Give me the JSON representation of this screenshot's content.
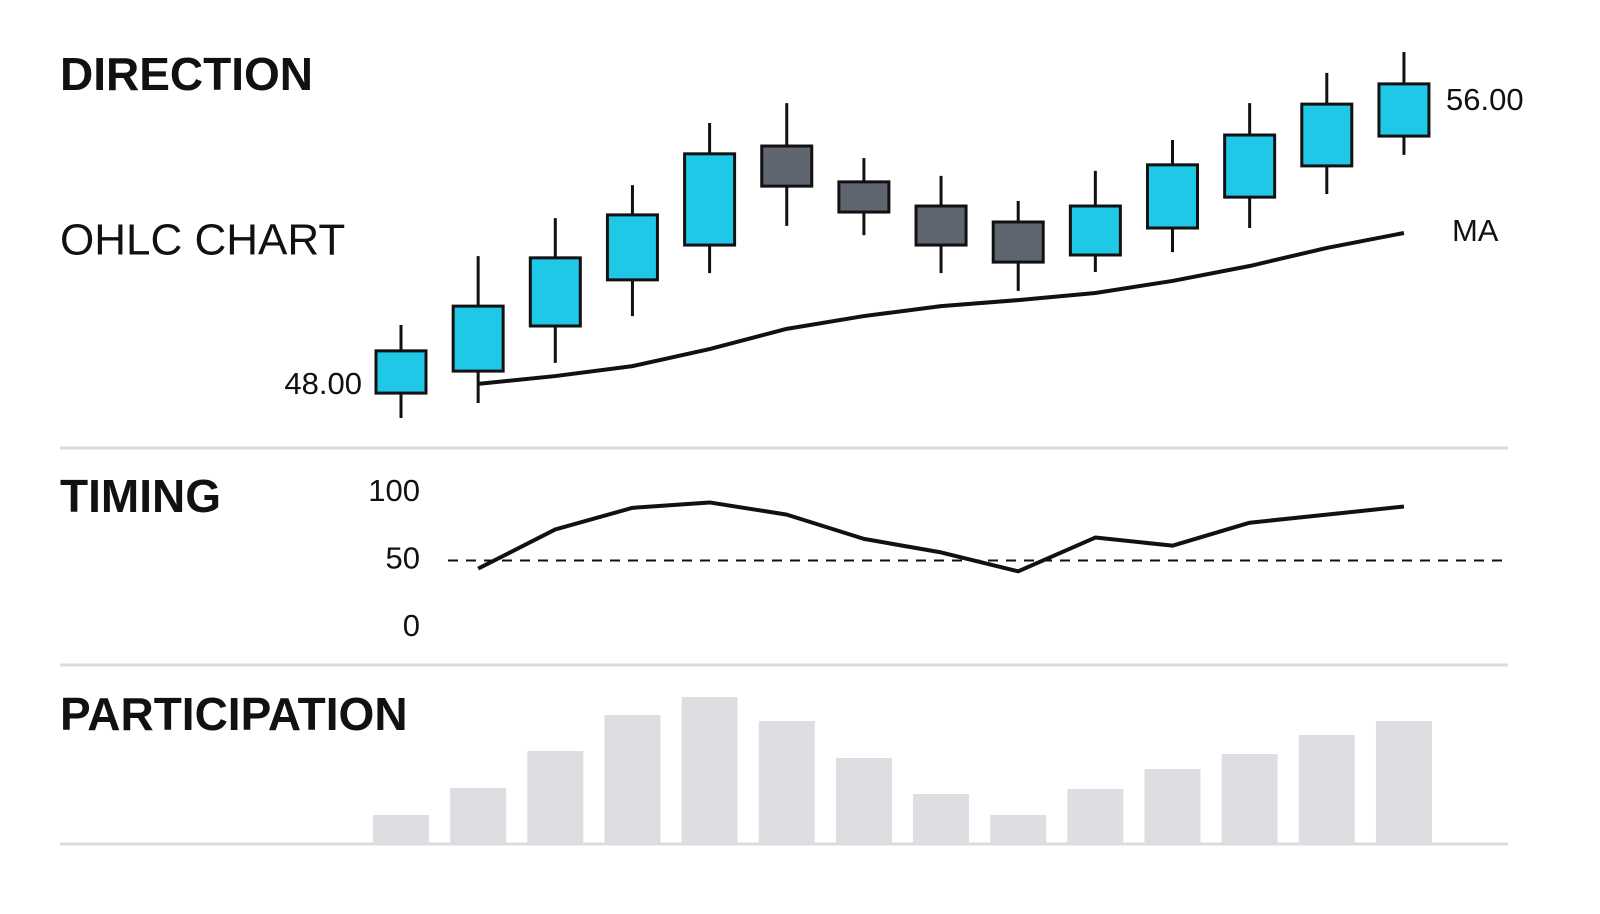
{
  "chart_data": [
    {
      "type": "candlestick",
      "title": "DIRECTION",
      "subtitle": "OHLC CHART",
      "categories": [
        null,
        null,
        null,
        null,
        null,
        null,
        null,
        null,
        null,
        null,
        null,
        null,
        null,
        null
      ],
      "open": [
        47.8,
        48.42,
        49.69,
        50.99,
        51.97,
        54.76,
        53.75,
        53.07,
        52.62,
        51.69,
        52.45,
        53.32,
        54.2,
        55.04
      ],
      "high": [
        49.72,
        51.66,
        52.73,
        53.66,
        55.41,
        55.97,
        54.42,
        53.92,
        53.21,
        54.06,
        54.93,
        55.97,
        56.82,
        57.41
      ],
      "low": [
        47.1,
        47.52,
        48.65,
        49.97,
        51.18,
        52.51,
        52.25,
        51.18,
        50.68,
        51.21,
        51.77,
        52.45,
        53.41,
        54.51
      ],
      "close": [
        48.99,
        50.25,
        51.61,
        52.82,
        54.54,
        53.63,
        52.9,
        51.97,
        51.49,
        53.07,
        54.23,
        55.07,
        55.94,
        56.51
      ],
      "up_color": "#1ec8e6",
      "down_color": "#5f6670",
      "series": [
        {
          "name": "MA",
          "color": "#111111",
          "values": [
            null,
            48.06,
            48.28,
            48.56,
            49.04,
            49.61,
            49.97,
            50.25,
            50.42,
            50.62,
            50.96,
            51.38,
            51.89,
            52.31
          ]
        }
      ],
      "ylim": [
        47,
        58
      ],
      "yticks": [
        {
          "value": 48,
          "label": "48.00"
        },
        {
          "value": 56,
          "label": "56.00"
        }
      ]
    },
    {
      "type": "line",
      "title": "TIMING",
      "categories": [
        null,
        null,
        null,
        null,
        null,
        null,
        null,
        null,
        null,
        null,
        null,
        null,
        null,
        null
      ],
      "values": [
        null,
        44,
        73,
        89,
        93,
        84,
        66,
        56,
        42,
        67,
        61,
        78,
        84,
        90
      ],
      "color": "#111111",
      "reference_line": 50,
      "ylim": [
        0,
        100
      ],
      "yticks": [
        0,
        50,
        100
      ]
    },
    {
      "type": "bar",
      "title": "PARTICIPATION",
      "categories": [
        null,
        null,
        null,
        null,
        null,
        null,
        null,
        null,
        null,
        null,
        null,
        null,
        null,
        null
      ],
      "values": [
        28,
        55,
        92,
        128,
        146,
        122,
        85,
        49,
        28,
        54,
        74,
        89,
        108,
        122
      ],
      "color": "#dcdee2",
      "ylim": [
        0,
        150
      ]
    }
  ]
}
